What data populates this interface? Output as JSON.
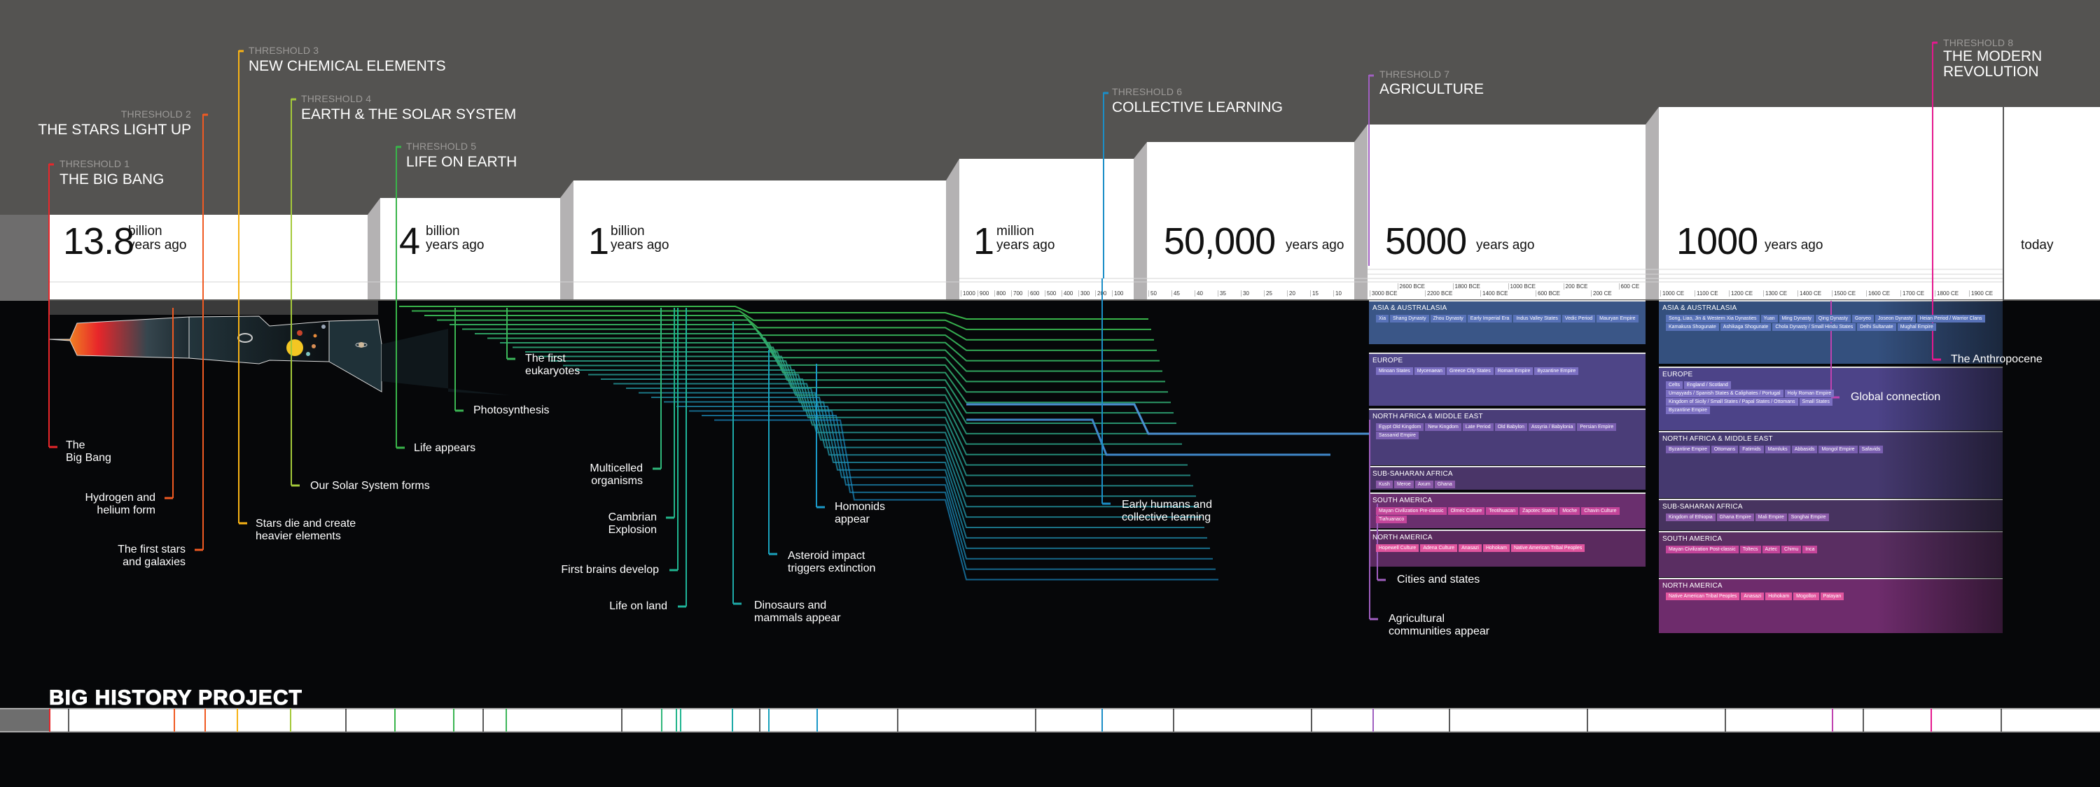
{
  "thresholds": [
    {
      "label": "THRESHOLD 1",
      "title": "THE BIG BANG",
      "color": "#e8262a"
    },
    {
      "label": "THRESHOLD 2",
      "title": "THE STARS LIGHT UP",
      "color": "#f05a22"
    },
    {
      "label": "THRESHOLD 3",
      "title": "NEW CHEMICAL ELEMENTS",
      "color": "#f7b215"
    },
    {
      "label": "THRESHOLD 4",
      "title": "EARTH & THE SOLAR SYSTEM",
      "color": "#a4c93a"
    },
    {
      "label": "THRESHOLD 5",
      "title": "LIFE ON EARTH",
      "color": "#39b54a"
    },
    {
      "label": "THRESHOLD 6",
      "title": "COLLECTIVE LEARNING",
      "color": "#1b8ec7"
    },
    {
      "label": "THRESHOLD 7",
      "title": "AGRICULTURE",
      "color": "#a05fc0"
    },
    {
      "label": "THRESHOLD 8",
      "title": "THE MODERN REVOLUTION",
      "title_lines": [
        "THE MODERN",
        "REVOLUTION"
      ],
      "color": "#e5188e"
    }
  ],
  "time_scale": [
    {
      "number": "13.8",
      "unit_lines": [
        "billion",
        "years ago"
      ]
    },
    {
      "number": "4",
      "unit_lines": [
        "billion",
        "years ago"
      ]
    },
    {
      "number": "1",
      "unit_lines": [
        "billion",
        "years ago"
      ]
    },
    {
      "number": "1",
      "unit_lines": [
        "million",
        "years ago"
      ]
    },
    {
      "number": "50,000",
      "unit_lines": [
        "years ago"
      ]
    },
    {
      "number": "5000",
      "unit_lines": [
        "years ago"
      ]
    },
    {
      "number": "1000",
      "unit_lines": [
        "years ago"
      ]
    },
    {
      "number": "",
      "unit_lines": [
        "today"
      ]
    }
  ],
  "ticks": {
    "million": [
      "1000",
      "900",
      "800",
      "700",
      "600",
      "500",
      "400",
      "300",
      "200",
      "100"
    ],
    "thousands": [
      "50",
      "45",
      "40",
      "35",
      "30",
      "25",
      "20",
      "15",
      "10"
    ],
    "bce": [
      "3000 BCE",
      "2600 BCE",
      "2200 BCE",
      "1800 BCE",
      "1400 BCE",
      "1000 BCE",
      "600 BCE",
      "200 BCE",
      "200 CE",
      "600 CE"
    ],
    "ce": [
      "1000 CE",
      "1100 CE",
      "1200 CE",
      "1300 CE",
      "1400 CE",
      "1500 CE",
      "1600 CE",
      "1700 CE",
      "1800 CE",
      "1900 CE"
    ]
  },
  "events": [
    {
      "lines": [
        "The",
        "Big Bang"
      ],
      "color": "#e8262a"
    },
    {
      "lines": [
        "Hydrogen and",
        "helium form"
      ],
      "color": "#f05a22"
    },
    {
      "lines": [
        "The first stars",
        "and galaxies"
      ],
      "color": "#f05a22"
    },
    {
      "lines": [
        "Stars die and create",
        "heavier elements"
      ],
      "color": "#f7b215"
    },
    {
      "lines": [
        "Our Solar System forms"
      ],
      "color": "#a4c93a"
    },
    {
      "lines": [
        "Life appears"
      ],
      "color": "#39b54a"
    },
    {
      "lines": [
        "Photosynthesis"
      ],
      "color": "#3bb552"
    },
    {
      "lines": [
        "The first",
        "eukaryotes"
      ],
      "color": "#3cb65a"
    },
    {
      "lines": [
        "Multicelled",
        "organisms"
      ],
      "color": "#2fb77a"
    },
    {
      "lines": [
        "Cambrian",
        "Explosion"
      ],
      "color": "#22b58a"
    },
    {
      "lines": [
        "First brains develop"
      ],
      "color": "#20b590"
    },
    {
      "lines": [
        "Life on land"
      ],
      "color": "#1fb49a"
    },
    {
      "lines": [
        "Dinosaurs and",
        "mammals appear"
      ],
      "color": "#1daaa8"
    },
    {
      "lines": [
        "Asteroid impact",
        "triggers extinction"
      ],
      "color": "#1aa2bc"
    },
    {
      "lines": [
        "Homonids",
        "appear"
      ],
      "color": "#1a98c8"
    },
    {
      "lines": [
        "Early humans and",
        "collective learning"
      ],
      "color": "#1b8ec7"
    },
    {
      "lines": [
        "Cities and states"
      ],
      "color": "#a05fc0"
    },
    {
      "lines": [
        "Agricultural",
        "communities appear"
      ],
      "color": "#a05fc0"
    },
    {
      "lines": [
        "Global connection"
      ],
      "color": "#c043b0"
    },
    {
      "lines": [
        "The Anthropocene"
      ],
      "color": "#e5188e"
    }
  ],
  "regions_bce": [
    {
      "name": "ASIA & AUSTRALASIA",
      "color": "#3a5687",
      "bands": [
        "Xia",
        "Shang Dynasty",
        "Zhou Dynasty",
        "Early Imperial Era",
        "Indus Valley States",
        "Vedic Period",
        "Mauryan Empire"
      ]
    },
    {
      "name": "EUROPE",
      "color": "#4e4587",
      "bands": [
        "Minoan States",
        "Mycenaean",
        "Greece City States",
        "Roman Empire",
        "Byzantine Empire"
      ]
    },
    {
      "name": "NORTH AFRICA & MIDDLE EAST",
      "color": "#4a3d78",
      "bands": [
        "Egypt Old Kingdom",
        "New Kingdom",
        "Late Period",
        "Old Babylon",
        "Assyria / Babylonia",
        "Persian Empire",
        "Sassanid Empire"
      ]
    },
    {
      "name": "SUB-SAHARAN AFRICA",
      "color": "#4a3568",
      "bands": [
        "Kush",
        "Meroe",
        "Axum",
        "Ghana"
      ]
    },
    {
      "name": "SOUTH AMERICA",
      "color": "#6a2f6e",
      "bands": [
        "Mayan Civilization Pre-classic",
        "Olmec Culture",
        "Teotihuacan",
        "Zapotec States",
        "Moche",
        "Chavin Culture",
        "Tiahuanaco"
      ]
    },
    {
      "name": "NORTH AMERICA",
      "color": "#5a2a5e",
      "bands": [
        "Hopewell Culture",
        "Adena Culture",
        "Anasazi",
        "Hohokam",
        "Native American Tribal Peoples"
      ]
    }
  ],
  "regions_ce": [
    {
      "name": "ASIA & AUSTRALASIA",
      "color": "#34507e",
      "bands": [
        "Song, Liao, Jin & Western Xia Dynasties",
        "Yuan",
        "Ming Dynasty",
        "Qing Dynasty",
        "Goryeo",
        "Joseon Dynasty",
        "Heian Period / Warrior Clans",
        "Kamakura Shogunate",
        "Ashikaga Shogunate",
        "Chola Dynasty / Small Hindu States",
        "Delhi Sultanate",
        "Mughal Empire"
      ]
    },
    {
      "name": "EUROPE",
      "color": "#4c4388",
      "bands": [
        "Celts",
        "England / Scotland",
        "Umayyads / Spanish States & Caliphates / Portugal",
        "Holy Roman Empire",
        "Kingdom of Sicily / Small States / Papal States / Ottomans",
        "Small States",
        "Byzantine Empire"
      ]
    },
    {
      "name": "NORTH AFRICA & MIDDLE EAST",
      "color": "#45396f",
      "bands": [
        "Byzantine Empire",
        "Ottomans",
        "Fatimids",
        "Mamluks",
        "Abbasids",
        "Mongol Empire",
        "Safavids"
      ]
    },
    {
      "name": "SUB-SAHARAN AFRICA",
      "color": "#47335f",
      "bands": [
        "Kingdom of Ethiopia",
        "Ghana Empire",
        "Mali Empire",
        "Songhai Empire"
      ]
    },
    {
      "name": "SOUTH AMERICA",
      "color": "#5a2e62",
      "bands": [
        "Mayan Civilization Post-classic",
        "Toltecs",
        "Aztec",
        "Chimu",
        "Inca"
      ]
    },
    {
      "name": "NORTH AMERICA",
      "color": "#6e2c6c",
      "bands": [
        "Native American Tribal Peoples",
        "Anasazi",
        "Hohokam",
        "Mogollon",
        "Patayan"
      ]
    }
  ],
  "footer": {
    "title": "BIG HISTORY PROJECT"
  }
}
